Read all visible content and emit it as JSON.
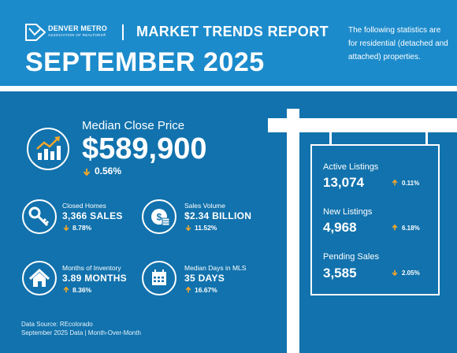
{
  "colors": {
    "header_bg": "#1c8bcb",
    "body_bg": "#1172ad",
    "arrow": "#f4a62a",
    "text": "#ffffff"
  },
  "header": {
    "brand_name": "DENVER METRO",
    "brand_sub": "ASSOCIATION OF REALTORS®",
    "report_title": "MARKET TRENDS REPORT",
    "month_title": "SEPTEMBER 2025",
    "note": "The following statistics are for residential (detached and attached) properties."
  },
  "median_close": {
    "label": "Median Close Price",
    "value": "$589,900",
    "change": "0.56%",
    "direction": "down",
    "icon": "trend-chart-icon"
  },
  "stats": [
    {
      "key": "closed_homes",
      "label": "Closed Homes",
      "value": "3,366 SALES",
      "change": "8.78%",
      "direction": "down",
      "icon": "key-icon"
    },
    {
      "key": "sales_volume",
      "label": "Sales Volume",
      "value": "$2.34 BILLION",
      "change": "11.52%",
      "direction": "down",
      "icon": "coins-icon"
    },
    {
      "key": "months_inventory",
      "label": "Months of Inventory",
      "value": "3.89 MONTHS",
      "change": "8.36%",
      "direction": "up",
      "icon": "house-icon"
    },
    {
      "key": "median_days",
      "label": "Median Days in MLS",
      "value": "35 DAYS",
      "change": "16.67%",
      "direction": "up",
      "icon": "calendar-icon"
    }
  ],
  "sign": [
    {
      "label": "Active Listings",
      "value": "13,074",
      "change": "0.11%",
      "direction": "up"
    },
    {
      "label": "New Listings",
      "value": "4,968",
      "change": "6.18%",
      "direction": "up"
    },
    {
      "label": "Pending Sales",
      "value": "3,585",
      "change": "2.05%",
      "direction": "down"
    }
  ],
  "source": {
    "line1": "Data Source: REcolorado",
    "line2": "September 2025 Data | Month-Over-Month"
  }
}
